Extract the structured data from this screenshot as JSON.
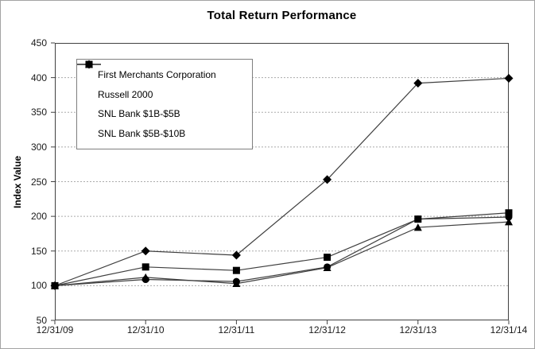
{
  "page": {
    "border_color": "#a3a3a3"
  },
  "chart_data": {
    "type": "line",
    "title": "Total Return Performance",
    "xlabel": "",
    "ylabel": "Index Value",
    "categories": [
      "12/31/09",
      "12/31/10",
      "12/31/11",
      "12/31/12",
      "12/31/13",
      "12/31/14"
    ],
    "series": [
      {
        "name": "First Merchants Corporation",
        "marker": "diamond",
        "values": [
          100,
          150,
          144,
          253,
          392,
          399
        ]
      },
      {
        "name": "Russell 2000",
        "marker": "square",
        "values": [
          100,
          127,
          122,
          141,
          196,
          205
        ]
      },
      {
        "name": "SNL Bank $1B-$5B",
        "marker": "triangle",
        "values": [
          100,
          112,
          103,
          126,
          184,
          192
        ]
      },
      {
        "name": "SNL Bank $5B-$10B",
        "marker": "circle",
        "values": [
          100,
          109,
          106,
          127,
          196,
          199
        ]
      }
    ],
    "ylim": [
      50,
      450
    ],
    "ytick_step": 50,
    "grid": "horizontal-dotted",
    "legend_position": "upper-left-inside",
    "colors": {
      "line": "#3f3f3f",
      "marker": "#000000",
      "frame": "#404040",
      "grid": "#ababab",
      "text": "#1a1a1a"
    }
  }
}
